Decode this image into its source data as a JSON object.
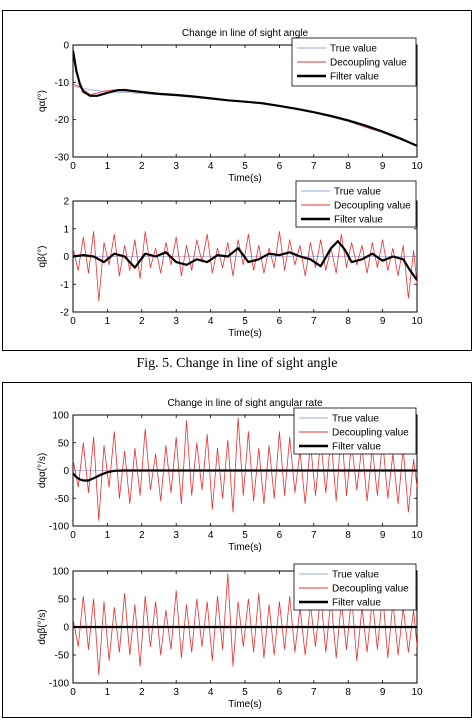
{
  "figure1": {
    "caption": "Fig. 5.   Change in line of sight angle"
  },
  "legend_labels": [
    "True value",
    "Decoupling value",
    "Filter value"
  ],
  "colors": {
    "true": "#9aa8e0",
    "decoupling": "#e83030",
    "filter": "#000000"
  },
  "chart_data": [
    {
      "type": "line",
      "title": "Change in line of sight angle",
      "xlabel": "Time(s)",
      "ylabel": "qα(°)",
      "xlim": [
        0,
        10
      ],
      "ylim": [
        -30,
        0
      ],
      "xticks": [
        "0",
        "1",
        "2",
        "3",
        "4",
        "5",
        "6",
        "7",
        "8",
        "9",
        "10"
      ],
      "yticks": [
        "0",
        "-10",
        "-20",
        "-30"
      ],
      "legend_position": "top-right",
      "grid": false,
      "series": [
        {
          "name": "True value",
          "x": [
            0,
            0.5,
            1,
            2,
            3,
            4,
            5,
            6,
            7,
            8,
            9,
            10
          ],
          "y": [
            -11,
            -12,
            -12.5,
            -13,
            -13.6,
            -14.4,
            -15.2,
            -16.5,
            -18.2,
            -20.5,
            -23.5,
            -27
          ]
        },
        {
          "name": "Decoupling value",
          "x": [
            0,
            0.2,
            0.5,
            1,
            1.5,
            2,
            2.5,
            3,
            3.5,
            4,
            4.5,
            5,
            5.5,
            6,
            6.5,
            7,
            7.5,
            8,
            8.5,
            9,
            9.5,
            10
          ],
          "y": [
            -10.5,
            -11.2,
            -13.3,
            -12.2,
            -11.8,
            -12.5,
            -13.2,
            -13.4,
            -13.8,
            -14.3,
            -14.8,
            -15.3,
            -15.5,
            -16.2,
            -17.1,
            -18,
            -19,
            -20.3,
            -22,
            -23.4,
            -25.2,
            -27.2
          ]
        },
        {
          "name": "Filter value",
          "x": [
            0,
            0.1,
            0.2,
            0.3,
            0.5,
            0.7,
            1,
            1.3,
            1.5,
            2,
            2.5,
            3,
            3.5,
            4,
            4.5,
            5,
            5.5,
            6,
            6.5,
            7,
            7.5,
            8,
            8.5,
            9,
            9.5,
            10
          ],
          "y": [
            -1.5,
            -7,
            -10.5,
            -12.5,
            -13.6,
            -13.6,
            -12.8,
            -12.1,
            -12.1,
            -12.6,
            -13.1,
            -13.4,
            -13.8,
            -14.3,
            -14.8,
            -15.2,
            -15.6,
            -16.3,
            -17.1,
            -18,
            -19,
            -20.2,
            -21.6,
            -23.2,
            -25,
            -27
          ]
        }
      ]
    },
    {
      "type": "line",
      "xlabel": "Time(s)",
      "ylabel": "qβ(°)",
      "xlim": [
        0,
        10
      ],
      "ylim": [
        -2,
        2
      ],
      "xticks": [
        "0",
        "1",
        "2",
        "3",
        "4",
        "5",
        "6",
        "7",
        "8",
        "9",
        "10"
      ],
      "yticks": [
        "2",
        "1",
        "0",
        "-1",
        "-2"
      ],
      "legend_position": "top-right",
      "grid": false,
      "series": [
        {
          "name": "True value",
          "x": [
            0,
            10
          ],
          "y": [
            0,
            0
          ]
        },
        {
          "name": "Decoupling value",
          "x": [
            0,
            0.15,
            0.3,
            0.45,
            0.6,
            0.75,
            0.9,
            1.05,
            1.2,
            1.35,
            1.5,
            1.65,
            1.8,
            1.95,
            2.1,
            2.25,
            2.4,
            2.55,
            2.7,
            2.85,
            3,
            3.15,
            3.3,
            3.45,
            3.6,
            3.75,
            3.9,
            4.05,
            4.2,
            4.35,
            4.5,
            4.65,
            4.8,
            4.95,
            5.1,
            5.25,
            5.4,
            5.55,
            5.7,
            5.85,
            6,
            6.15,
            6.3,
            6.45,
            6.6,
            6.75,
            6.9,
            7.05,
            7.2,
            7.35,
            7.5,
            7.65,
            7.8,
            7.95,
            8.1,
            8.25,
            8.4,
            8.55,
            8.7,
            8.85,
            9,
            9.15,
            9.3,
            9.45,
            9.6,
            9.75,
            9.9,
            10
          ],
          "y": [
            0.3,
            -0.5,
            0.7,
            -0.6,
            0.9,
            -1.6,
            0.5,
            -0.3,
            0.8,
            -0.7,
            0.4,
            -0.5,
            0.6,
            -0.8,
            0.9,
            -0.4,
            0.3,
            -0.6,
            0.5,
            -0.3,
            0.7,
            -0.7,
            0.4,
            -0.5,
            0.6,
            -0.2,
            0.8,
            -0.6,
            0.3,
            -0.4,
            0.5,
            -0.7,
            0.6,
            -0.3,
            0.8,
            -0.5,
            0.4,
            -0.6,
            0.3,
            -0.4,
            0.9,
            -0.5,
            0.6,
            -0.3,
            0.4,
            -0.7,
            0.5,
            -0.4,
            0.6,
            -0.5,
            0.3,
            -0.6,
            0.8,
            -0.4,
            0.5,
            -0.3,
            0.4,
            -0.6,
            0.5,
            -0.4,
            0.6,
            -0.5,
            0.3,
            -0.7,
            0.4,
            -1.5,
            0.2,
            -1.0
          ]
        },
        {
          "name": "Filter value",
          "x": [
            0,
            0.3,
            0.6,
            0.9,
            1.2,
            1.5,
            1.8,
            2.1,
            2.4,
            2.7,
            3,
            3.3,
            3.6,
            3.9,
            4.2,
            4.5,
            4.8,
            5.1,
            5.4,
            5.7,
            6,
            6.3,
            6.6,
            6.9,
            7.2,
            7.5,
            7.7,
            7.9,
            8.1,
            8.4,
            8.7,
            9,
            9.3,
            9.6,
            9.8,
            10
          ],
          "y": [
            0,
            0.05,
            0,
            -0.2,
            0.1,
            0,
            -0.4,
            0.1,
            0,
            0.15,
            -0.2,
            -0.3,
            -0.1,
            -0.2,
            0.05,
            0,
            0.3,
            -0.2,
            -0.1,
            0.1,
            0.05,
            0.15,
            0,
            -0.1,
            -0.35,
            0.3,
            0.55,
            0.25,
            -0.2,
            -0.1,
            0.1,
            -0.15,
            0,
            -0.1,
            -0.5,
            -0.85
          ]
        }
      ]
    },
    {
      "type": "line",
      "title": "Change in line of sight angular rate",
      "xlabel": "Time(s)",
      "ylabel": "dqα(°/s)",
      "xlim": [
        0,
        10
      ],
      "ylim": [
        -100,
        100
      ],
      "xticks": [
        "0",
        "1",
        "2",
        "3",
        "4",
        "5",
        "6",
        "7",
        "8",
        "9",
        "10"
      ],
      "yticks": [
        "100",
        "50",
        "0",
        "-50",
        "-100"
      ],
      "legend_position": "top-right",
      "grid": false,
      "series": [
        {
          "name": "True value",
          "x": [
            0,
            10
          ],
          "y": [
            0,
            0
          ]
        },
        {
          "name": "Decoupling value",
          "x": [
            0,
            0.15,
            0.3,
            0.45,
            0.6,
            0.75,
            0.9,
            1.05,
            1.2,
            1.35,
            1.5,
            1.65,
            1.8,
            1.95,
            2.1,
            2.25,
            2.4,
            2.55,
            2.7,
            2.85,
            3,
            3.15,
            3.3,
            3.45,
            3.6,
            3.75,
            3.9,
            4.05,
            4.2,
            4.35,
            4.5,
            4.65,
            4.8,
            4.95,
            5.1,
            5.25,
            5.4,
            5.55,
            5.7,
            5.85,
            6,
            6.15,
            6.3,
            6.45,
            6.6,
            6.75,
            6.9,
            7.05,
            7.2,
            7.35,
            7.5,
            7.65,
            7.8,
            7.95,
            8.1,
            8.25,
            8.4,
            8.55,
            8.7,
            8.85,
            9,
            9.15,
            9.3,
            9.45,
            9.6,
            9.75,
            9.9,
            10
          ],
          "y": [
            20,
            -30,
            50,
            -40,
            60,
            -90,
            45,
            -30,
            70,
            -50,
            35,
            -60,
            40,
            -45,
            75,
            -35,
            30,
            -55,
            45,
            -40,
            60,
            -60,
            90,
            -45,
            50,
            -35,
            65,
            -70,
            40,
            -50,
            55,
            -75,
            95,
            -45,
            70,
            -55,
            40,
            -60,
            45,
            -50,
            70,
            -45,
            60,
            -40,
            35,
            -60,
            50,
            -45,
            55,
            -40,
            60,
            -55,
            75,
            -45,
            50,
            -35,
            45,
            -55,
            40,
            -45,
            55,
            -50,
            30,
            -60,
            40,
            -75,
            20,
            -30
          ]
        },
        {
          "name": "Filter value",
          "x": [
            0,
            0.1,
            0.2,
            0.3,
            0.45,
            0.6,
            0.8,
            1,
            1.2,
            1.5,
            2,
            3,
            4,
            5,
            6,
            7,
            8,
            9,
            10
          ],
          "y": [
            -5,
            -12,
            -16,
            -18,
            -18,
            -14,
            -8,
            -3,
            -0.5,
            0,
            0,
            0,
            0,
            0,
            0,
            0,
            0,
            0,
            0
          ]
        }
      ]
    },
    {
      "type": "line",
      "xlabel": "Time(s)",
      "ylabel": "dqβ(°/s)",
      "xlim": [
        0,
        10
      ],
      "ylim": [
        -100,
        100
      ],
      "xticks": [
        "0",
        "1",
        "2",
        "3",
        "4",
        "5",
        "6",
        "7",
        "8",
        "9",
        "10"
      ],
      "yticks": [
        "100",
        "50",
        "0",
        "-50",
        "-100"
      ],
      "legend_position": "top-right",
      "grid": false,
      "series": [
        {
          "name": "True value",
          "x": [
            0,
            10
          ],
          "y": [
            0,
            0
          ]
        },
        {
          "name": "Decoupling value",
          "x": [
            0,
            0.15,
            0.3,
            0.45,
            0.6,
            0.75,
            0.9,
            1.05,
            1.2,
            1.35,
            1.5,
            1.65,
            1.8,
            1.95,
            2.1,
            2.25,
            2.4,
            2.55,
            2.7,
            2.85,
            3,
            3.15,
            3.3,
            3.45,
            3.6,
            3.75,
            3.9,
            4.05,
            4.2,
            4.35,
            4.5,
            4.65,
            4.8,
            4.95,
            5.1,
            5.25,
            5.4,
            5.55,
            5.7,
            5.85,
            6,
            6.15,
            6.3,
            6.45,
            6.6,
            6.75,
            6.9,
            7.05,
            7.2,
            7.35,
            7.5,
            7.65,
            7.8,
            7.95,
            8.1,
            8.25,
            8.4,
            8.55,
            8.7,
            8.85,
            9,
            9.15,
            9.3,
            9.45,
            9.6,
            9.75,
            9.9,
            10
          ],
          "y": [
            15,
            -35,
            55,
            -40,
            50,
            -85,
            45,
            -60,
            35,
            -45,
            60,
            -50,
            40,
            -70,
            55,
            -35,
            45,
            -50,
            30,
            -40,
            65,
            -55,
            40,
            -45,
            50,
            -35,
            45,
            -60,
            55,
            -40,
            95,
            -70,
            45,
            -35,
            50,
            -45,
            60,
            -55,
            40,
            -50,
            45,
            -40,
            55,
            -45,
            35,
            -50,
            40,
            -35,
            60,
            -45,
            50,
            -55,
            45,
            -40,
            55,
            -60,
            35,
            -45,
            50,
            -40,
            60,
            -55,
            45,
            -50,
            35,
            -45,
            30,
            -35
          ]
        },
        {
          "name": "Filter value",
          "x": [
            0,
            1,
            2,
            3,
            4,
            5,
            6,
            7,
            8,
            9,
            10
          ],
          "y": [
            0,
            0,
            0,
            0,
            0,
            0,
            0,
            0,
            0,
            0,
            0
          ]
        }
      ]
    }
  ]
}
